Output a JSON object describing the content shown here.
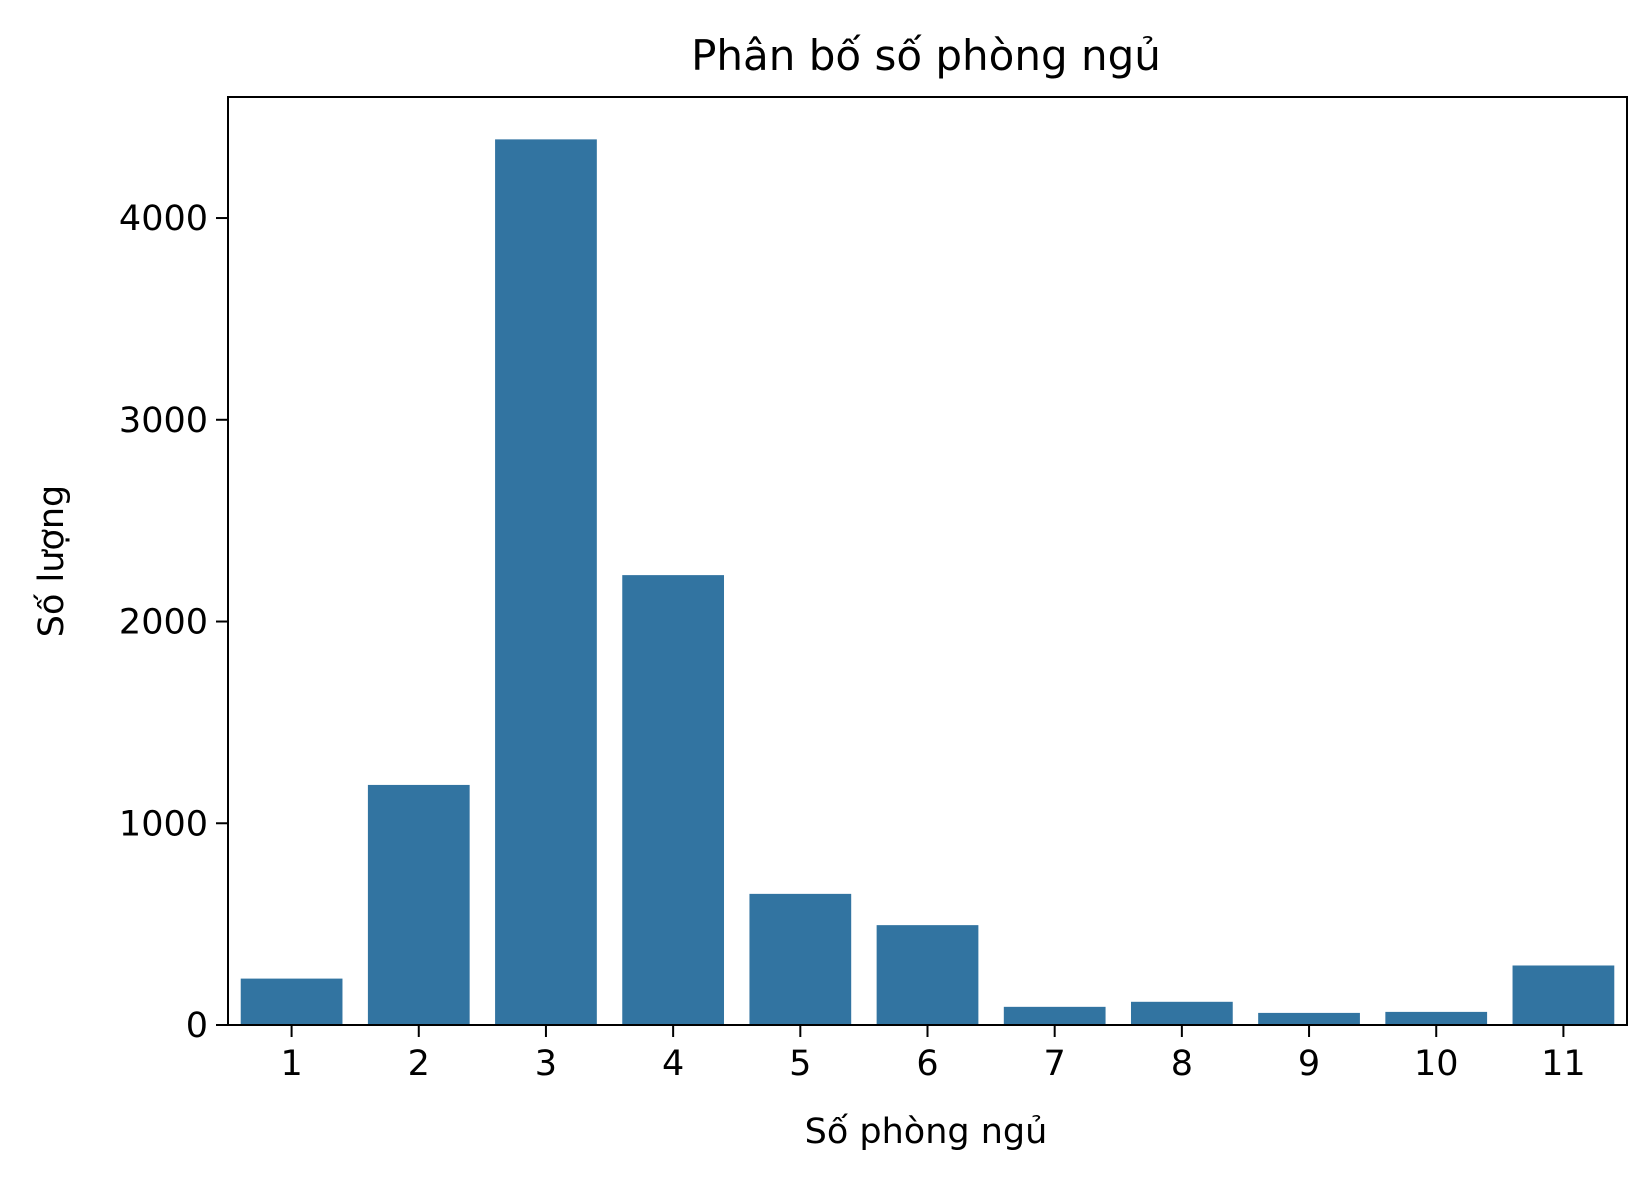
{
  "chart_data": {
    "type": "bar",
    "title": "Phân bố số phòng ngủ",
    "xlabel": "Số phòng ngủ",
    "ylabel": "Số lượng",
    "categories": [
      "1",
      "2",
      "3",
      "4",
      "5",
      "6",
      "7",
      "8",
      "9",
      "10",
      "11"
    ],
    "values": [
      230,
      1190,
      4390,
      2230,
      650,
      495,
      90,
      115,
      60,
      65,
      295
    ],
    "ylim": [
      0,
      4600
    ],
    "yticks": [
      0,
      1000,
      2000,
      3000,
      4000
    ],
    "grid": false,
    "legend": "none",
    "bar_color": "#3274a1"
  }
}
